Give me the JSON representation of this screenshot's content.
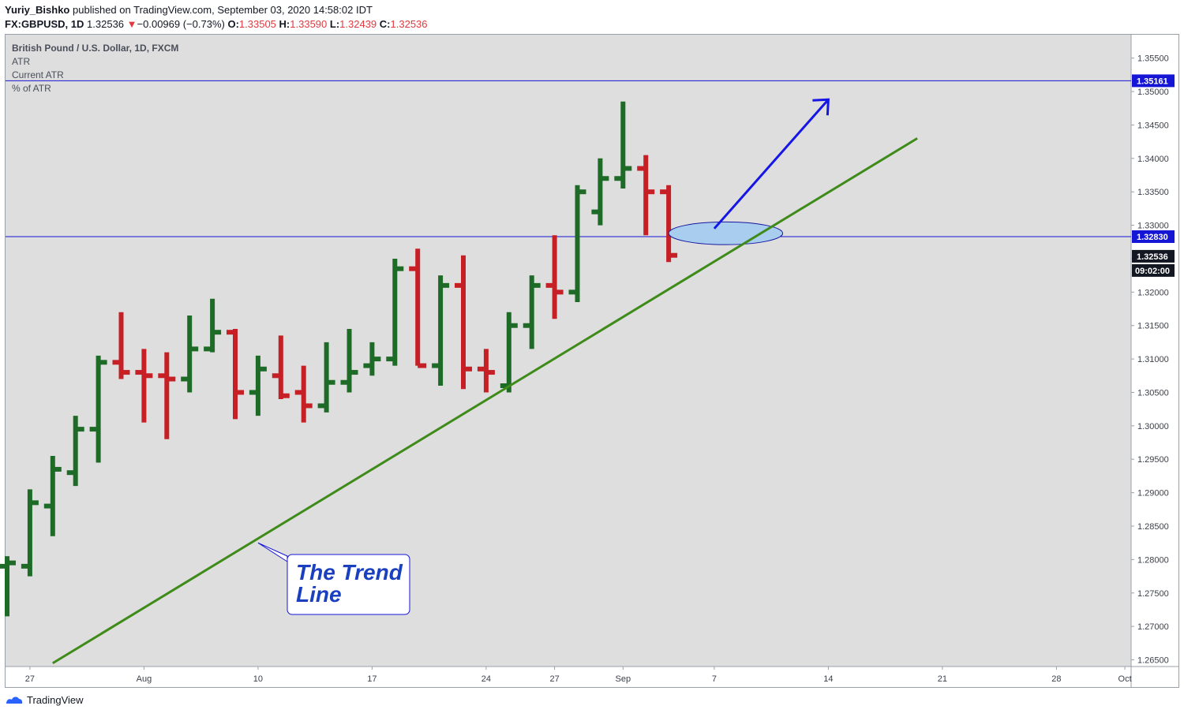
{
  "header": {
    "author": "Yuriy_Bishko",
    "published": "published on TradingView.com, September 03, 2020 14:58:02 IDT",
    "symbol": "FX:GBPUSD, 1D",
    "last": "1.32536",
    "change_arrow": "▼",
    "change": "−0.00969 (−0.73%)",
    "o_label": "O:",
    "o_value": "1.33505",
    "h_label": "H:",
    "h_value": "1.33590",
    "l_label": "L:",
    "l_value": "1.32439",
    "c_label": "C:",
    "c_value": "1.32536"
  },
  "legend": {
    "title": "British Pound / U.S. Dollar, 1D, FXCM",
    "indicator1": "ATR",
    "indicator2": "Current ATR",
    "indicator3": "% of ATR"
  },
  "annotation": {
    "line1": "The Trend",
    "line2": "Line"
  },
  "footer": {
    "brand": "TradingView"
  },
  "colors": {
    "up": "#1e6b27",
    "down": "#c62026",
    "background": "#dedede",
    "horizontal_line": "#1515d6",
    "trend_line": "#3e8b1a",
    "arrow": "#1515e6",
    "ellipse_fill": "#a9cdee"
  },
  "chart_data": {
    "type": "ohlc",
    "title": "British Pound / U.S. Dollar, 1D, FXCM",
    "ylim": [
      1.264,
      1.3585
    ],
    "y_ticks": [
      "1.26500",
      "1.27000",
      "1.27500",
      "1.28000",
      "1.28500",
      "1.29000",
      "1.29500",
      "1.30000",
      "1.30500",
      "1.31000",
      "1.31500",
      "1.32000",
      "1.32500",
      "1.33000",
      "1.33500",
      "1.34000",
      "1.34500",
      "1.35000",
      "1.35500"
    ],
    "x_labels": [
      {
        "label": "27",
        "day": 1
      },
      {
        "label": "Aug",
        "day": 6
      },
      {
        "label": "10",
        "day": 11
      },
      {
        "label": "17",
        "day": 16
      },
      {
        "label": "24",
        "day": 21
      },
      {
        "label": "27",
        "day": 24
      },
      {
        "label": "Sep",
        "day": 27
      },
      {
        "label": "7",
        "day": 31
      },
      {
        "label": "14",
        "day": 36
      },
      {
        "label": "21",
        "day": 41
      },
      {
        "label": "28",
        "day": 46
      },
      {
        "label": "Oct",
        "day": 49
      }
    ],
    "bars": [
      {
        "o": 1.279,
        "h": 1.2805,
        "l": 1.2715,
        "c": 1.2795
      },
      {
        "o": 1.279,
        "h": 1.2905,
        "l": 1.2775,
        "c": 1.2885
      },
      {
        "o": 1.288,
        "h": 1.2955,
        "l": 1.2835,
        "c": 1.2935
      },
      {
        "o": 1.293,
        "h": 1.3015,
        "l": 1.291,
        "c": 1.2995
      },
      {
        "o": 1.2995,
        "h": 1.3105,
        "l": 1.2945,
        "c": 1.3095
      },
      {
        "o": 1.3095,
        "h": 1.317,
        "l": 1.307,
        "c": 1.308
      },
      {
        "o": 1.308,
        "h": 1.3115,
        "l": 1.3005,
        "c": 1.3075
      },
      {
        "o": 1.3075,
        "h": 1.311,
        "l": 1.298,
        "c": 1.307
      },
      {
        "o": 1.307,
        "h": 1.3165,
        "l": 1.305,
        "c": 1.3115
      },
      {
        "o": 1.3115,
        "h": 1.319,
        "l": 1.311,
        "c": 1.314
      },
      {
        "o": 1.314,
        "h": 1.3145,
        "l": 1.301,
        "c": 1.305
      },
      {
        "o": 1.305,
        "h": 1.3105,
        "l": 1.3015,
        "c": 1.3085
      },
      {
        "o": 1.3075,
        "h": 1.3135,
        "l": 1.304,
        "c": 1.3045
      },
      {
        "o": 1.305,
        "h": 1.309,
        "l": 1.3005,
        "c": 1.303
      },
      {
        "o": 1.303,
        "h": 1.3125,
        "l": 1.302,
        "c": 1.3065
      },
      {
        "o": 1.3065,
        "h": 1.3145,
        "l": 1.305,
        "c": 1.308
      },
      {
        "o": 1.309,
        "h": 1.3125,
        "l": 1.3075,
        "c": 1.31
      },
      {
        "o": 1.31,
        "h": 1.325,
        "l": 1.309,
        "c": 1.3235
      },
      {
        "o": 1.3235,
        "h": 1.3265,
        "l": 1.309,
        "c": 1.309
      },
      {
        "o": 1.309,
        "h": 1.3225,
        "l": 1.306,
        "c": 1.321
      },
      {
        "o": 1.321,
        "h": 1.3255,
        "l": 1.3055,
        "c": 1.3085
      },
      {
        "o": 1.3085,
        "h": 1.3115,
        "l": 1.305,
        "c": 1.308
      },
      {
        "o": 1.306,
        "h": 1.317,
        "l": 1.305,
        "c": 1.315
      },
      {
        "o": 1.315,
        "h": 1.3225,
        "l": 1.3115,
        "c": 1.321
      },
      {
        "o": 1.321,
        "h": 1.3285,
        "l": 1.316,
        "c": 1.32
      },
      {
        "o": 1.32,
        "h": 1.336,
        "l": 1.3185,
        "c": 1.335
      },
      {
        "o": 1.332,
        "h": 1.34,
        "l": 1.33,
        "c": 1.337
      },
      {
        "o": 1.337,
        "h": 1.3485,
        "l": 1.3355,
        "c": 1.3385
      },
      {
        "o": 1.3385,
        "h": 1.3405,
        "l": 1.3285,
        "c": 1.335
      },
      {
        "o": 1.335,
        "h": 1.336,
        "l": 1.3245,
        "c": 1.3255
      }
    ],
    "horizontal_lines": [
      {
        "value": 1.35161,
        "label": "1.35161"
      },
      {
        "value": 1.3283,
        "label": "1.32830"
      }
    ],
    "last_price_label": "1.32536",
    "countdown_label": "09:02:00",
    "trend_line": {
      "from": {
        "day": 2.0,
        "price": 1.2645
      },
      "to": {
        "day": 39.9,
        "price": 1.343
      }
    },
    "projection_arrow": {
      "from": {
        "day": 31.0,
        "price": 1.3295
      },
      "to": {
        "day": 36.0,
        "price": 1.3488
      }
    },
    "ellipse": {
      "center_day": 31.5,
      "center_price": 1.3288,
      "rx_days": 2.5,
      "ry_price": 0.0017
    },
    "annotation_anchor": {
      "day": 11.0,
      "price": 1.2825
    }
  }
}
